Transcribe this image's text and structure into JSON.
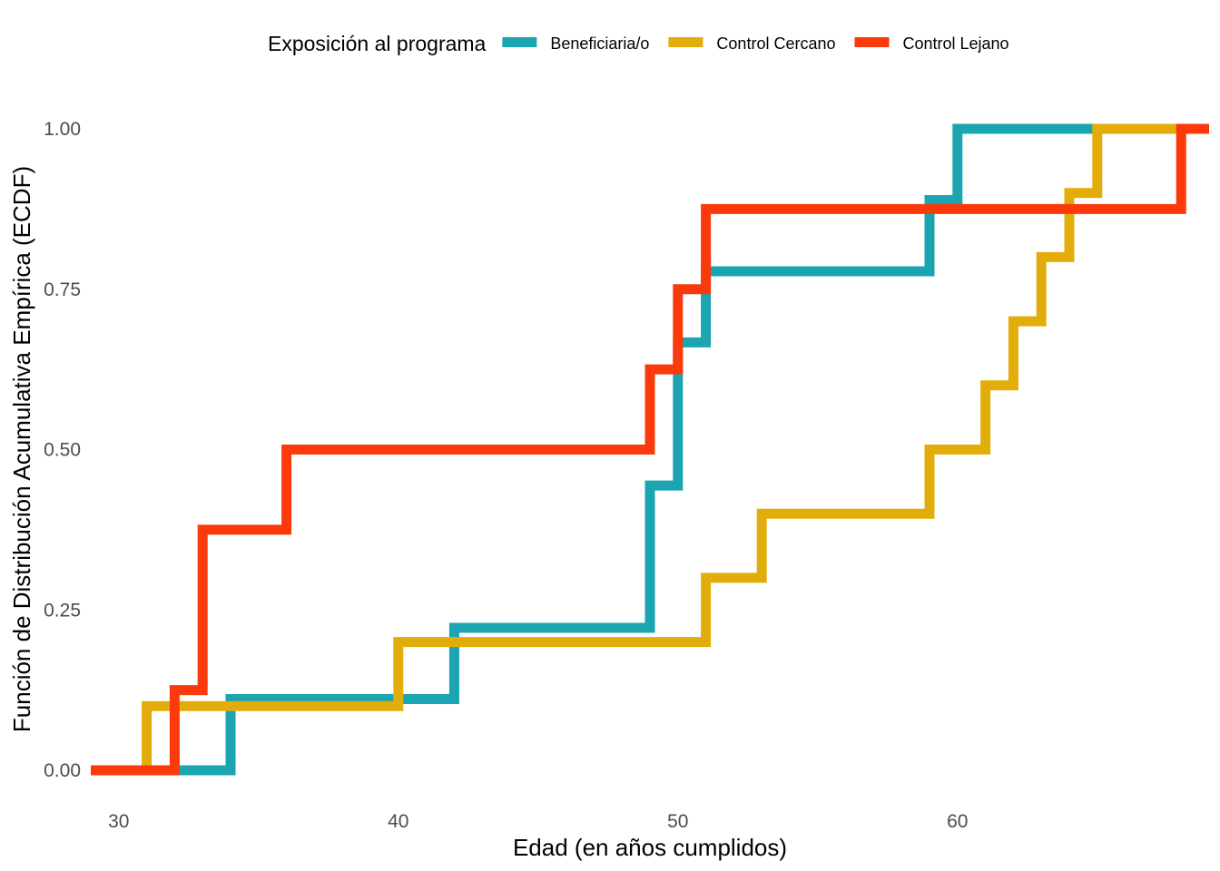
{
  "chart_data": {
    "type": "line",
    "step": true,
    "xlabel": "Edad (en años cumplidos)",
    "ylabel": "Función de Distribución Acumulativa Empírica (ECDF)",
    "xlim": [
      29,
      69
    ],
    "ylim": [
      0,
      1
    ],
    "x_ticks": [
      30,
      40,
      50,
      60
    ],
    "y_ticks": [
      0,
      0.25,
      0.5,
      0.75,
      1
    ],
    "y_tick_labels": [
      "0.00",
      "0.25",
      "0.50",
      "0.75",
      "1.00"
    ],
    "grid": false,
    "legend": {
      "title": "Exposición al programa",
      "position": "top"
    },
    "series": [
      {
        "name": "Beneficiaria/o",
        "color": "#1AA5B0",
        "steps": [
          [
            34,
            0.111
          ],
          [
            42,
            0.222
          ],
          [
            49,
            0.444
          ],
          [
            50,
            0.667
          ],
          [
            51,
            0.778
          ],
          [
            59,
            0.889
          ],
          [
            60,
            1.0
          ]
        ]
      },
      {
        "name": "Control Cercano",
        "color": "#E2AD0A",
        "steps": [
          [
            31,
            0.1
          ],
          [
            40,
            0.2
          ],
          [
            51,
            0.3
          ],
          [
            53,
            0.4
          ],
          [
            59,
            0.5
          ],
          [
            61,
            0.6
          ],
          [
            62,
            0.7
          ],
          [
            63,
            0.8
          ],
          [
            64,
            0.9
          ],
          [
            65,
            1.0
          ]
        ]
      },
      {
        "name": "Control Lejano",
        "color": "#FB3A0C",
        "steps": [
          [
            32,
            0.125
          ],
          [
            33,
            0.375
          ],
          [
            36,
            0.5
          ],
          [
            49,
            0.625
          ],
          [
            50,
            0.75
          ],
          [
            51,
            0.875
          ],
          [
            68,
            1.0
          ]
        ]
      }
    ]
  }
}
